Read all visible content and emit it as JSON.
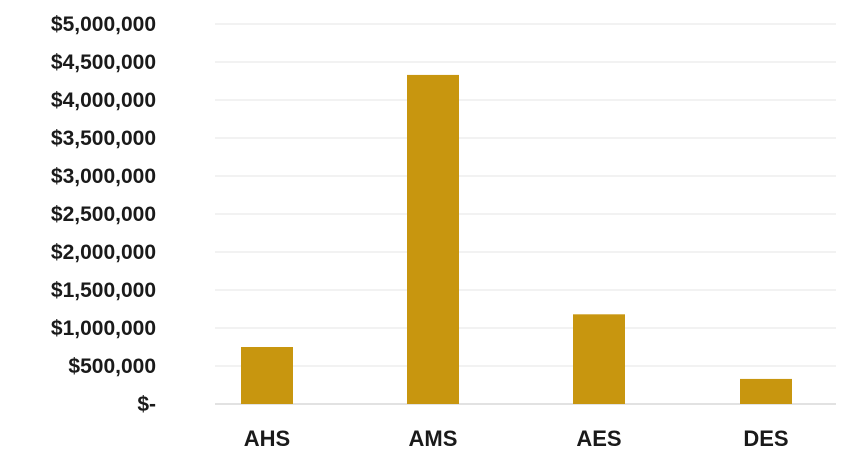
{
  "chart_data": {
    "type": "bar",
    "title": "",
    "xlabel": "",
    "ylabel": "",
    "categories": [
      "AHS",
      "AMS",
      "AES",
      "DES"
    ],
    "values": [
      750000,
      4330000,
      1180000,
      330000
    ],
    "ylim": [
      0,
      5000000
    ],
    "yticks": [
      0,
      500000,
      1000000,
      1500000,
      2000000,
      2500000,
      3000000,
      3500000,
      4000000,
      4500000,
      5000000
    ],
    "ytick_labels": [
      "$-",
      "$500,000",
      "$1,000,000",
      "$1,500,000",
      "$2,000,000",
      "$2,500,000",
      "$3,000,000",
      "$3,500,000",
      "$4,000,000",
      "$4,500,000",
      "$5,000,000"
    ],
    "grid": true,
    "legend": "none",
    "bar_color": "#C8960F"
  }
}
